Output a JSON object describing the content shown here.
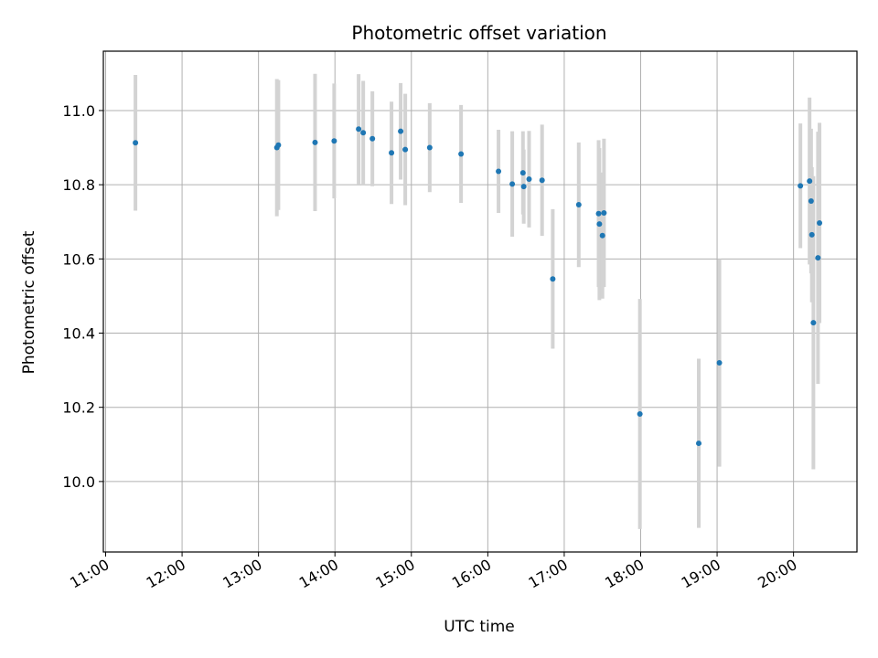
{
  "chart_data": {
    "type": "scatter",
    "title": "Photometric offset variation",
    "xlabel": "UTC time",
    "ylabel": "Photometric offset",
    "xlim": [
      10.97,
      20.83
    ],
    "ylim": [
      9.81,
      11.16
    ],
    "x_unit": "hours UTC",
    "x_ticks": [
      11,
      12,
      13,
      14,
      15,
      16,
      17,
      18,
      19,
      20
    ],
    "x_tick_labels": [
      "11:00",
      "12:00",
      "13:00",
      "14:00",
      "15:00",
      "16:00",
      "17:00",
      "18:00",
      "19:00",
      "20:00"
    ],
    "y_ticks": [
      10.0,
      10.2,
      10.4,
      10.6,
      10.8,
      11.0
    ],
    "y_tick_labels": [
      "10.0",
      "10.2",
      "10.4",
      "10.6",
      "10.8",
      "11.0"
    ],
    "grid": true,
    "colors": {
      "marker": "#1f77b4",
      "errorbar": "#d3d3d3",
      "grid": "#b0b0b0"
    },
    "series": [
      {
        "name": "Photometric offset",
        "points": [
          {
            "x": 11.39,
            "y": 10.913,
            "err": 0.183
          },
          {
            "x": 13.24,
            "y": 10.9,
            "err": 0.185
          },
          {
            "x": 13.26,
            "y": 10.907,
            "err": 0.175
          },
          {
            "x": 13.74,
            "y": 10.914,
            "err": 0.185
          },
          {
            "x": 13.99,
            "y": 10.918,
            "err": 0.155
          },
          {
            "x": 14.31,
            "y": 10.95,
            "err": 0.148
          },
          {
            "x": 14.37,
            "y": 10.94,
            "err": 0.14
          },
          {
            "x": 14.49,
            "y": 10.924,
            "err": 0.128
          },
          {
            "x": 14.74,
            "y": 10.886,
            "err": 0.138
          },
          {
            "x": 14.86,
            "y": 10.944,
            "err": 0.13
          },
          {
            "x": 14.92,
            "y": 10.895,
            "err": 0.15
          },
          {
            "x": 15.24,
            "y": 10.9,
            "err": 0.12
          },
          {
            "x": 15.65,
            "y": 10.883,
            "err": 0.132
          },
          {
            "x": 16.14,
            "y": 10.836,
            "err": 0.112
          },
          {
            "x": 16.32,
            "y": 10.802,
            "err": 0.142
          },
          {
            "x": 16.46,
            "y": 10.832,
            "err": 0.112
          },
          {
            "x": 16.47,
            "y": 10.795,
            "err": 0.1
          },
          {
            "x": 16.54,
            "y": 10.815,
            "err": 0.13
          },
          {
            "x": 16.71,
            "y": 10.812,
            "err": 0.15
          },
          {
            "x": 16.85,
            "y": 10.546,
            "err": 0.188
          },
          {
            "x": 17.19,
            "y": 10.746,
            "err": 0.168
          },
          {
            "x": 17.45,
            "y": 10.722,
            "err": 0.198
          },
          {
            "x": 17.46,
            "y": 10.694,
            "err": 0.205
          },
          {
            "x": 17.5,
            "y": 10.663,
            "err": 0.17
          },
          {
            "x": 17.52,
            "y": 10.724,
            "err": 0.2
          },
          {
            "x": 17.99,
            "y": 10.182,
            "err": 0.31
          },
          {
            "x": 18.76,
            "y": 10.103,
            "err": 0.228
          },
          {
            "x": 19.03,
            "y": 10.32,
            "err": 0.28
          },
          {
            "x": 20.09,
            "y": 10.797,
            "err": 0.168
          },
          {
            "x": 20.21,
            "y": 10.81,
            "err": 0.225
          },
          {
            "x": 20.23,
            "y": 10.756,
            "err": 0.195
          },
          {
            "x": 20.24,
            "y": 10.665,
            "err": 0.182
          },
          {
            "x": 20.26,
            "y": 10.428,
            "err": 0.395
          },
          {
            "x": 20.32,
            "y": 10.603,
            "err": 0.34
          },
          {
            "x": 20.34,
            "y": 10.697,
            "err": 0.27
          }
        ]
      }
    ]
  }
}
